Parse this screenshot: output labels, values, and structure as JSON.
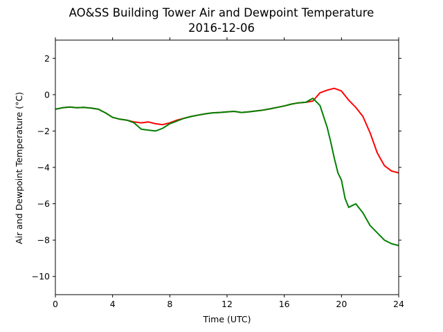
{
  "chart_data": {
    "type": "line",
    "title": "AO&SS Building Tower Air and Dewpoint Temperature",
    "subtitle": "2016-12-06",
    "xlabel": "Time (UTC)",
    "ylabel": "Air and Dewpoint Temperature (°C)",
    "xlim": [
      0,
      24
    ],
    "ylim": [
      -11,
      3
    ],
    "xticks": [
      0,
      4,
      8,
      12,
      16,
      20,
      24
    ],
    "yticks": [
      2,
      0,
      -2,
      -4,
      -6,
      -8,
      -10
    ],
    "xtick_labels": [
      "0",
      "4",
      "8",
      "12",
      "16",
      "20",
      "24"
    ],
    "ytick_labels": [
      "2",
      "0",
      "−2",
      "−4",
      "−6",
      "−8",
      "−10"
    ],
    "grid": false,
    "series": [
      {
        "color": "#ff0000",
        "x": [
          0,
          0.5,
          1,
          1.5,
          2,
          2.5,
          3,
          3.5,
          4,
          4.5,
          5,
          5.5,
          6,
          6.5,
          7,
          7.5,
          8,
          8.5,
          9,
          9.5,
          10,
          10.5,
          11,
          11.5,
          12,
          12.5,
          13,
          13.5,
          14,
          14.5,
          15,
          15.5,
          16,
          16.5,
          17,
          17.5,
          18,
          18.5,
          19,
          19.5,
          20,
          20.5,
          21,
          21.5,
          22,
          22.5,
          23,
          23.5,
          24
        ],
        "y": [
          -0.8,
          -0.72,
          -0.68,
          -0.72,
          -0.7,
          -0.74,
          -0.8,
          -1.0,
          -1.25,
          -1.35,
          -1.4,
          -1.5,
          -1.55,
          -1.5,
          -1.6,
          -1.65,
          -1.55,
          -1.4,
          -1.3,
          -1.2,
          -1.12,
          -1.05,
          -1.0,
          -0.98,
          -0.95,
          -0.92,
          -0.98,
          -0.95,
          -0.9,
          -0.85,
          -0.78,
          -0.7,
          -0.62,
          -0.52,
          -0.45,
          -0.42,
          -0.35,
          0.1,
          0.25,
          0.35,
          0.2,
          -0.3,
          -0.7,
          -1.2,
          -2.1,
          -3.2,
          -3.9,
          -4.2,
          -4.3
        ]
      },
      {
        "color": "#008000",
        "x": [
          0,
          0.5,
          1,
          1.5,
          2,
          2.5,
          3,
          3.5,
          4,
          4.5,
          5,
          5.5,
          6,
          6.5,
          7,
          7.5,
          8,
          8.5,
          9,
          9.5,
          10,
          10.5,
          11,
          11.5,
          12,
          12.5,
          13,
          13.5,
          14,
          14.5,
          15,
          15.5,
          16,
          16.5,
          17,
          17.5,
          18,
          18.5,
          19,
          19.25,
          19.5,
          19.75,
          20,
          20.25,
          20.5,
          20.75,
          21,
          21.5,
          22,
          22.5,
          23,
          23.5,
          24
        ],
        "y": [
          -0.8,
          -0.72,
          -0.68,
          -0.72,
          -0.7,
          -0.74,
          -0.8,
          -1.0,
          -1.25,
          -1.35,
          -1.4,
          -1.55,
          -1.9,
          -1.95,
          -2.0,
          -1.85,
          -1.6,
          -1.45,
          -1.3,
          -1.2,
          -1.12,
          -1.05,
          -1.0,
          -0.98,
          -0.95,
          -0.92,
          -0.98,
          -0.95,
          -0.9,
          -0.85,
          -0.78,
          -0.7,
          -0.62,
          -0.52,
          -0.45,
          -0.42,
          -0.2,
          -0.6,
          -1.8,
          -2.6,
          -3.5,
          -4.3,
          -4.7,
          -5.7,
          -6.2,
          -6.1,
          -6.0,
          -6.5,
          -7.2,
          -7.6,
          -8.0,
          -8.2,
          -8.3
        ]
      }
    ]
  }
}
